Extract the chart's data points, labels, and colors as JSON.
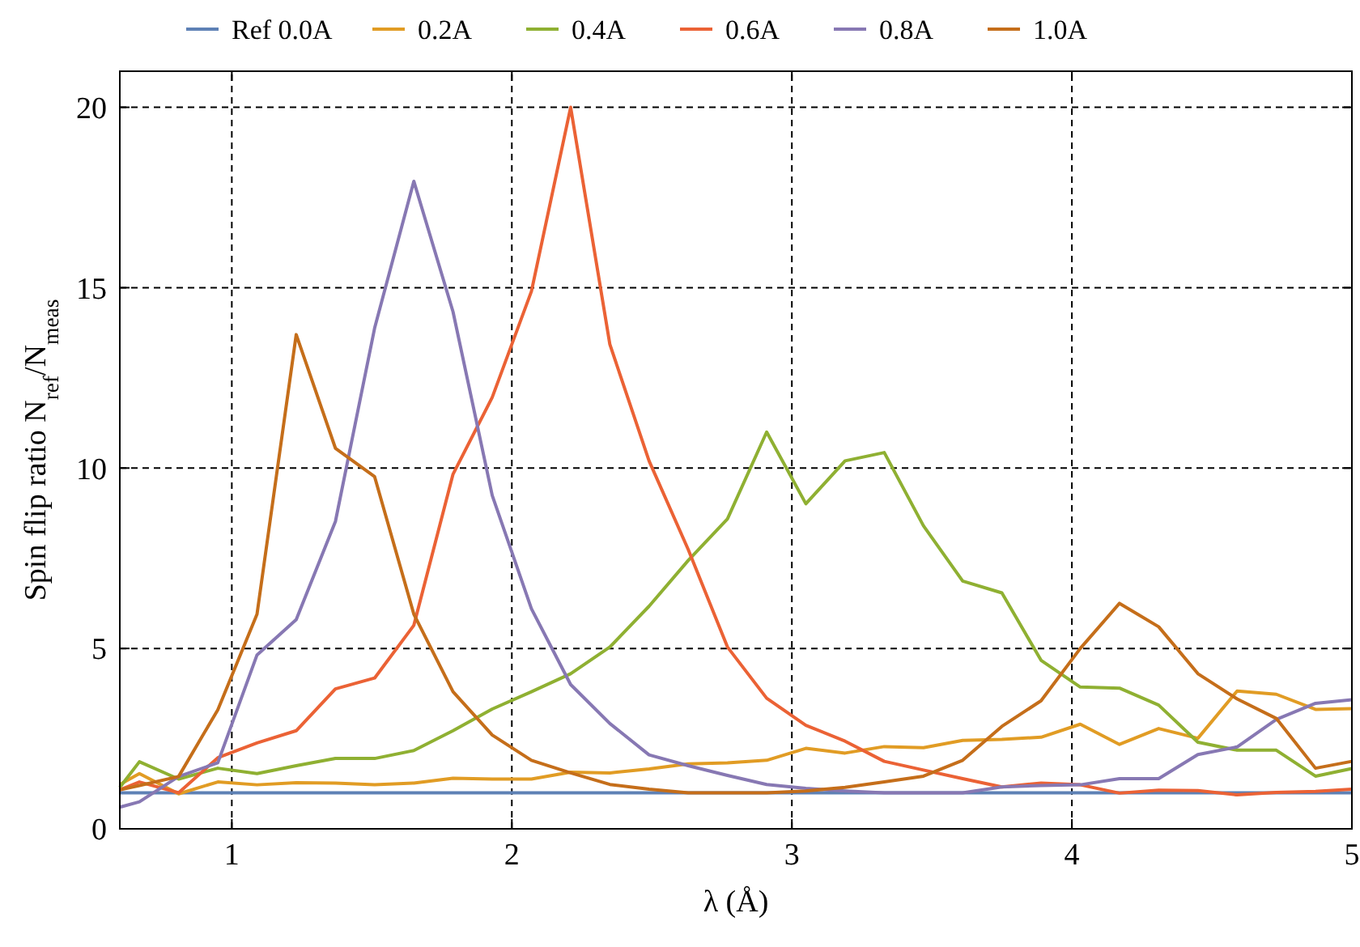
{
  "chart_data": {
    "type": "line",
    "xlabel": "λ (Å)",
    "ylabel": "Spin flip ratio N$_{ref}$/N$_{meas}$",
    "xlim": [
      0.6,
      5
    ],
    "ylim": [
      0,
      21
    ],
    "xticks": [
      1,
      2,
      3,
      4,
      5
    ],
    "yticks": [
      0,
      5,
      10,
      15,
      20
    ],
    "grid": true,
    "legend": "top",
    "line_style": "solid",
    "marker": "none",
    "series": [
      {
        "name": "Ref 0.0A",
        "color": "#5e81b5",
        "x": [
          0.6,
          5
        ],
        "values": [
          1,
          1
        ]
      },
      {
        "name": "0.2A",
        "color": "#e19c24",
        "x": [
          0.6,
          0.67,
          0.81,
          0.95,
          1.09,
          1.23,
          1.37,
          1.51,
          1.65,
          1.79,
          1.93,
          2.07,
          2.21,
          2.35,
          2.49,
          2.63,
          2.77,
          2.91,
          3.05,
          3.19,
          3.33,
          3.47,
          3.61,
          3.75,
          3.89,
          4.03,
          4.17,
          4.31,
          4.45,
          4.59,
          4.73,
          4.87,
          5.0
        ],
        "values": [
          1.23,
          1.53,
          0.97,
          1.3,
          1.22,
          1.28,
          1.27,
          1.22,
          1.27,
          1.4,
          1.38,
          1.38,
          1.57,
          1.55,
          1.66,
          1.8,
          1.83,
          1.9,
          2.23,
          2.1,
          2.28,
          2.25,
          2.45,
          2.48,
          2.54,
          2.9,
          2.34,
          2.78,
          2.51,
          3.82,
          3.73,
          3.31,
          3.33
        ]
      },
      {
        "name": "0.4A",
        "color": "#8fb032",
        "x": [
          0.6,
          0.67,
          0.81,
          0.95,
          1.09,
          1.23,
          1.37,
          1.51,
          1.65,
          1.79,
          1.93,
          2.07,
          2.21,
          2.35,
          2.49,
          2.63,
          2.77,
          2.91,
          3.05,
          3.19,
          3.33,
          3.47,
          3.61,
          3.75,
          3.89,
          4.03,
          4.17,
          4.31,
          4.45,
          4.59,
          4.73,
          4.87,
          5.0
        ],
        "values": [
          1.15,
          1.86,
          1.38,
          1.68,
          1.53,
          1.75,
          1.95,
          1.95,
          2.17,
          2.72,
          3.32,
          3.8,
          4.3,
          5.04,
          6.17,
          7.44,
          8.59,
          11.0,
          9.01,
          10.2,
          10.43,
          8.4,
          6.87,
          6.54,
          4.67,
          3.93,
          3.9,
          3.43,
          2.4,
          2.18,
          2.18,
          1.46,
          1.67
        ]
      },
      {
        "name": "0.6A",
        "color": "#eb6235",
        "x": [
          0.6,
          0.67,
          0.81,
          0.95,
          1.09,
          1.23,
          1.37,
          1.51,
          1.65,
          1.79,
          1.93,
          2.07,
          2.21,
          2.35,
          2.49,
          2.63,
          2.77,
          2.91,
          3.05,
          3.19,
          3.33,
          3.47,
          3.61,
          3.75,
          3.89,
          4.03,
          4.17,
          4.31,
          4.45,
          4.59,
          4.73,
          4.87,
          5.0
        ],
        "values": [
          1.08,
          1.3,
          1.0,
          1.97,
          2.38,
          2.72,
          3.88,
          4.18,
          5.64,
          9.83,
          11.96,
          14.9,
          20.0,
          13.43,
          10.2,
          7.74,
          5.04,
          3.62,
          2.87,
          2.43,
          1.87,
          1.63,
          1.39,
          1.16,
          1.27,
          1.22,
          0.99,
          1.07,
          1.06,
          0.94,
          1.01,
          1.04,
          1.1
        ]
      },
      {
        "name": "0.8A",
        "color": "#8778b3",
        "x": [
          0.6,
          0.67,
          0.81,
          0.95,
          1.09,
          1.23,
          1.37,
          1.51,
          1.65,
          1.79,
          1.93,
          2.07,
          2.21,
          2.35,
          2.49,
          2.63,
          2.77,
          2.91,
          3.05,
          3.19,
          3.33,
          3.47,
          3.61,
          3.75,
          3.89,
          4.03,
          4.17,
          4.31,
          4.45,
          4.59,
          4.73,
          4.87,
          5.0
        ],
        "values": [
          0.6,
          0.75,
          1.45,
          1.83,
          4.82,
          5.8,
          8.52,
          13.88,
          17.95,
          14.33,
          9.24,
          6.1,
          4.0,
          2.92,
          2.05,
          1.75,
          1.48,
          1.23,
          1.12,
          1.05,
          1.0,
          1.0,
          1.0,
          1.16,
          1.2,
          1.22,
          1.39,
          1.39,
          2.06,
          2.27,
          3.03,
          3.48,
          3.58
        ]
      },
      {
        "name": "1.0A",
        "color": "#c56e1a",
        "x": [
          0.6,
          0.67,
          0.81,
          0.95,
          1.09,
          1.23,
          1.37,
          1.51,
          1.65,
          1.79,
          1.93,
          2.07,
          2.21,
          2.35,
          2.49,
          2.63,
          2.77,
          2.91,
          3.05,
          3.19,
          3.33,
          3.47,
          3.61,
          3.75,
          3.89,
          4.03,
          4.17,
          4.31,
          4.45,
          4.59,
          4.73,
          4.87,
          5.0
        ],
        "values": [
          1.08,
          1.2,
          1.45,
          3.3,
          5.95,
          13.7,
          10.55,
          9.76,
          5.95,
          3.8,
          2.6,
          1.9,
          1.55,
          1.23,
          1.1,
          1.0,
          1.0,
          1.0,
          1.05,
          1.15,
          1.3,
          1.46,
          1.9,
          2.84,
          3.55,
          5.0,
          6.25,
          5.6,
          4.3,
          3.6,
          3.06,
          1.68,
          1.87
        ]
      }
    ]
  }
}
